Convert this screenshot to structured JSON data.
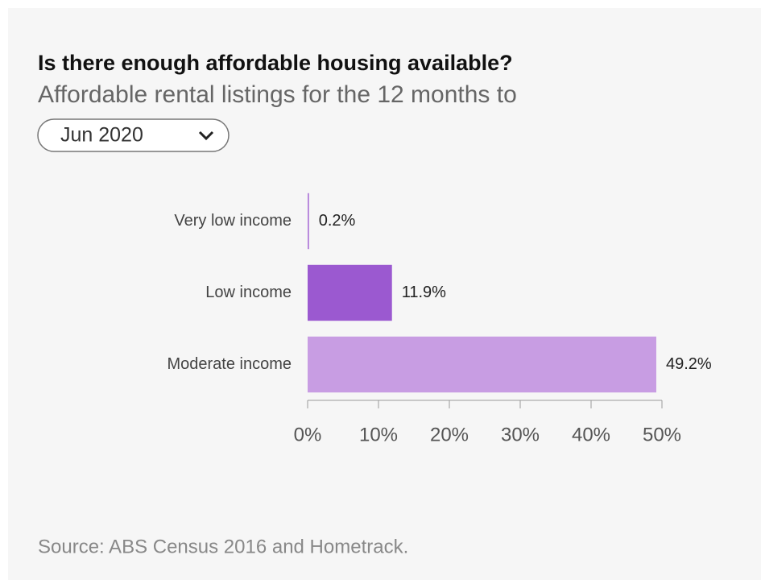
{
  "dropdown": {
    "selected": "Jun 2020"
  },
  "chart_data": {
    "type": "bar",
    "orientation": "horizontal",
    "title": "Is there enough affordable housing available?",
    "subtitle": "Affordable rental listings for the 12 months to",
    "categories": [
      "Very low income",
      "Low income",
      "Moderate income"
    ],
    "values": [
      0.2,
      11.9,
      49.2
    ],
    "value_labels": [
      "0.2%",
      "11.9%",
      "49.2%"
    ],
    "colors": [
      "#b07ad8",
      "#9b59d0",
      "#c89de3"
    ],
    "xlim": [
      0,
      50
    ],
    "xticks": [
      {
        "value": 0,
        "label": "0%"
      },
      {
        "value": 10,
        "label": "10%"
      },
      {
        "value": 20,
        "label": "20%"
      },
      {
        "value": 30,
        "label": "30%"
      },
      {
        "value": 40,
        "label": "40%"
      },
      {
        "value": 50,
        "label": "50%"
      }
    ],
    "grid": false,
    "source": "Source: ABS Census 2016 and Hometrack."
  }
}
